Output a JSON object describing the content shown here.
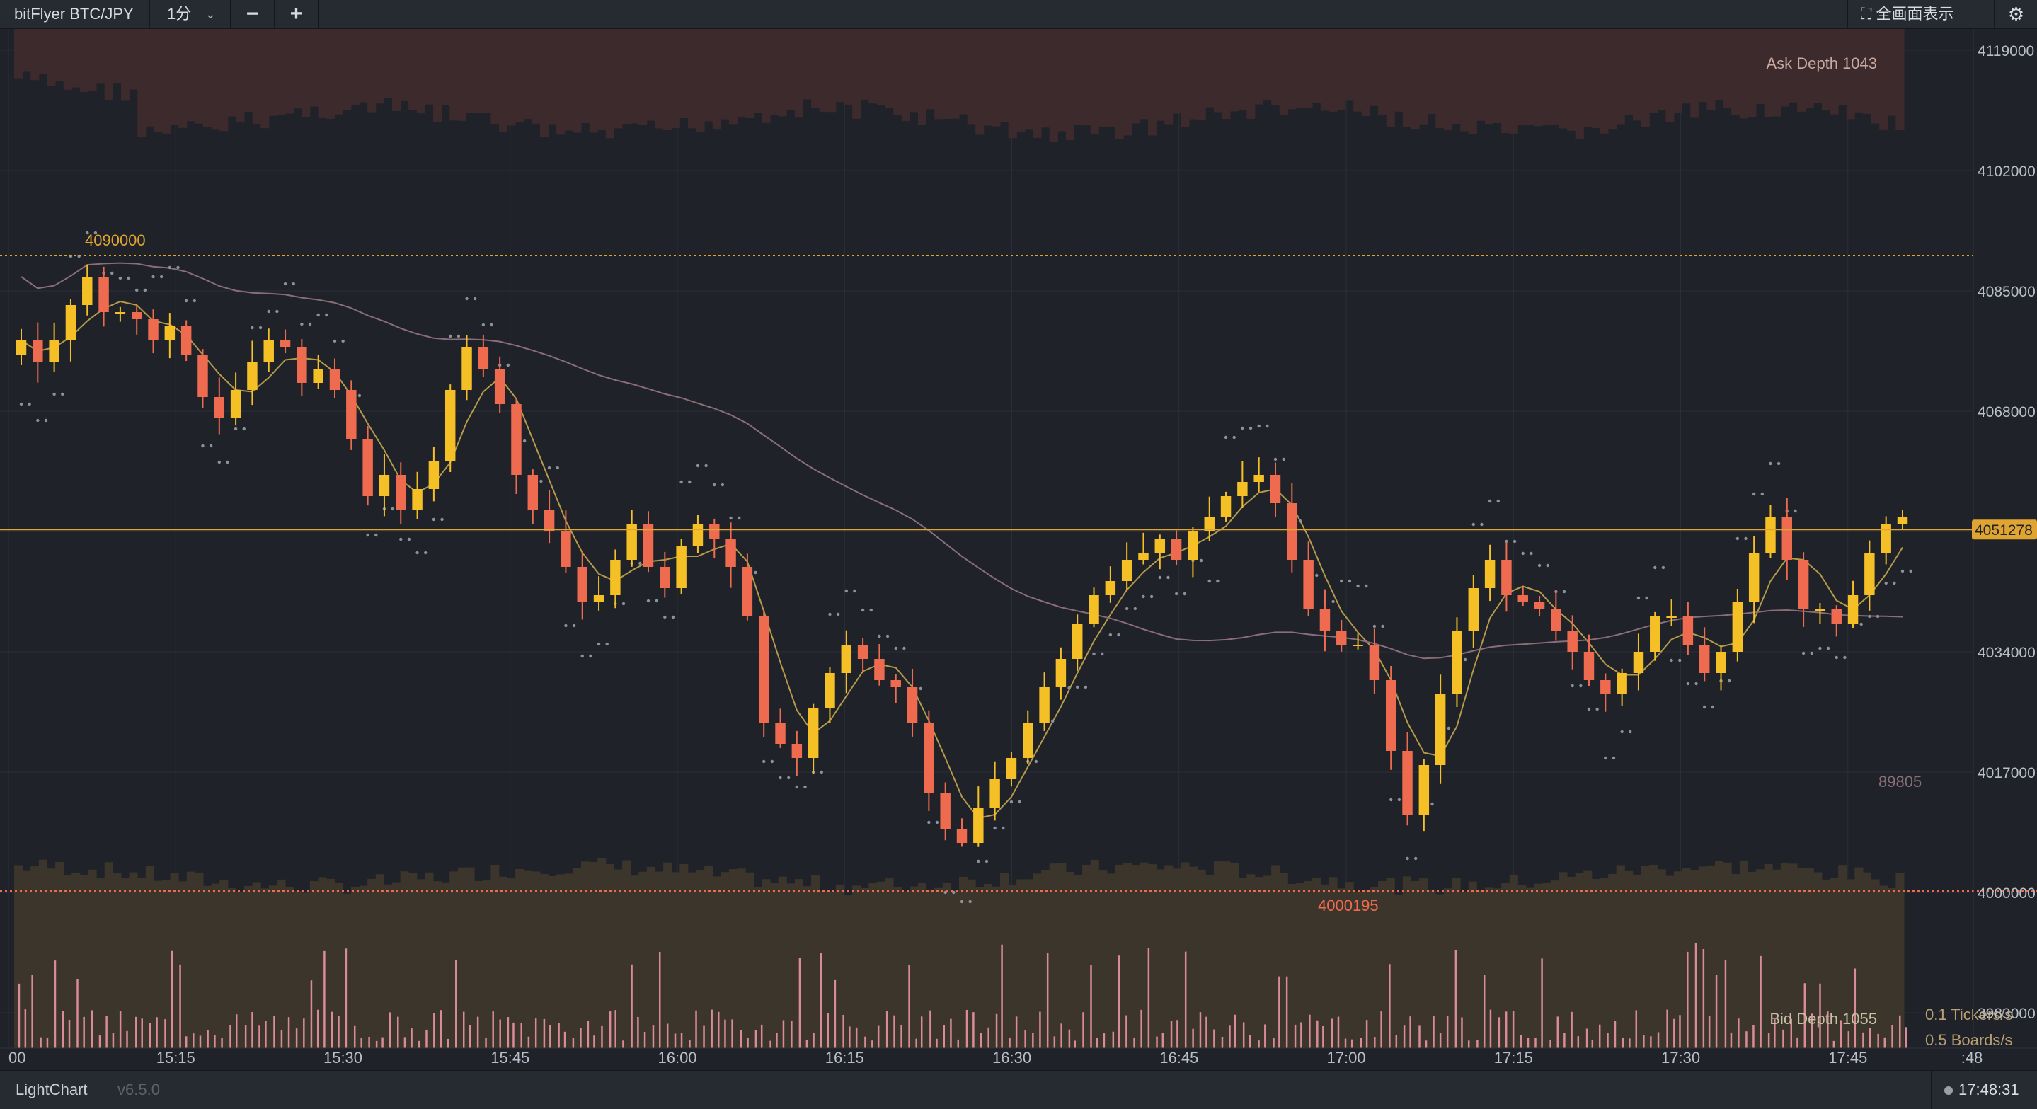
{
  "toolbar": {
    "pair": "bitFlyer BTC/JPY",
    "timeframe": "1分",
    "zoom_out": "−",
    "zoom_in": "+",
    "fullscreen": "全画面表示",
    "fullscreen_icon": "expand-icon",
    "settings_icon": "gear-icon",
    "timeframe_icon": "chevron-down-icon"
  },
  "footer": {
    "brand": "LightChart",
    "version": "v6.5.0",
    "clock": "17:48:31"
  },
  "colors": {
    "background": "#1f2229",
    "up": "#f5c026",
    "down": "#ef6b4f",
    "accent": "#e0a531",
    "ask_depth": "#3d2a2c",
    "bid_depth": "#3b352b",
    "ticker": "#d98b96"
  },
  "chart_data": {
    "type": "candlestick",
    "ylim": [
      3978000,
      4122000
    ],
    "y_ticks": [
      "4119000",
      "4102000",
      "4085000",
      "4068000",
      "4051000",
      "4034000",
      "4017000",
      "4000000",
      "3983000"
    ],
    "x_ticks": [
      "00",
      "15:15",
      "15:30",
      "15:45",
      "16:00",
      "16:15",
      "16:30",
      "16:45",
      "17:00",
      "17:15",
      "17:30",
      "17:45",
      ":48"
    ],
    "current_price": "4051278",
    "high_marker": "4090000",
    "low_marker": "4000195",
    "ask_depth_label": "Ask Depth 1043",
    "bid_depth_label": "Bid Depth 1055",
    "side_value": "89805",
    "tickers_rate": "0.1 Tickers/s",
    "boards_rate": "0.5 Boards/s",
    "close_series": [
      4078000,
      4075000,
      4078000,
      4083000,
      4087000,
      4082000,
      4082000,
      4081000,
      4078000,
      4080000,
      4076000,
      4070000,
      4067000,
      4071000,
      4075000,
      4078000,
      4077000,
      4072000,
      4074000,
      4071000,
      4064000,
      4056000,
      4059000,
      4054000,
      4057000,
      4061000,
      4071000,
      4077000,
      4074000,
      4069000,
      4059000,
      4054000,
      4051000,
      4046000,
      4041000,
      4042000,
      4047000,
      4052000,
      4046000,
      4043000,
      4049000,
      4052000,
      4050000,
      4046000,
      4039000,
      4024000,
      4021000,
      4019000,
      4026000,
      4031000,
      4035000,
      4033000,
      4030000,
      4029000,
      4024000,
      4014000,
      4009000,
      4007000,
      4012000,
      4016000,
      4019000,
      4024000,
      4029000,
      4033000,
      4038000,
      4042000,
      4044000,
      4047000,
      4048000,
      4050000,
      4047000,
      4051000,
      4053000,
      4056000,
      4058000,
      4059000,
      4055000,
      4047000,
      4040000,
      4037000,
      4035000,
      4035000,
      4030000,
      4020000,
      4011000,
      4018000,
      4028000,
      4037000,
      4043000,
      4047000,
      4042000,
      4041000,
      4040000,
      4037000,
      4034000,
      4030000,
      4028000,
      4031000,
      4034000,
      4039000,
      4039000,
      4035000,
      4031000,
      4034000,
      4041000,
      4048000,
      4053000,
      4047000,
      4040000,
      4040000,
      4038000,
      4042000,
      4048000,
      4052000,
      4053000
    ]
  }
}
